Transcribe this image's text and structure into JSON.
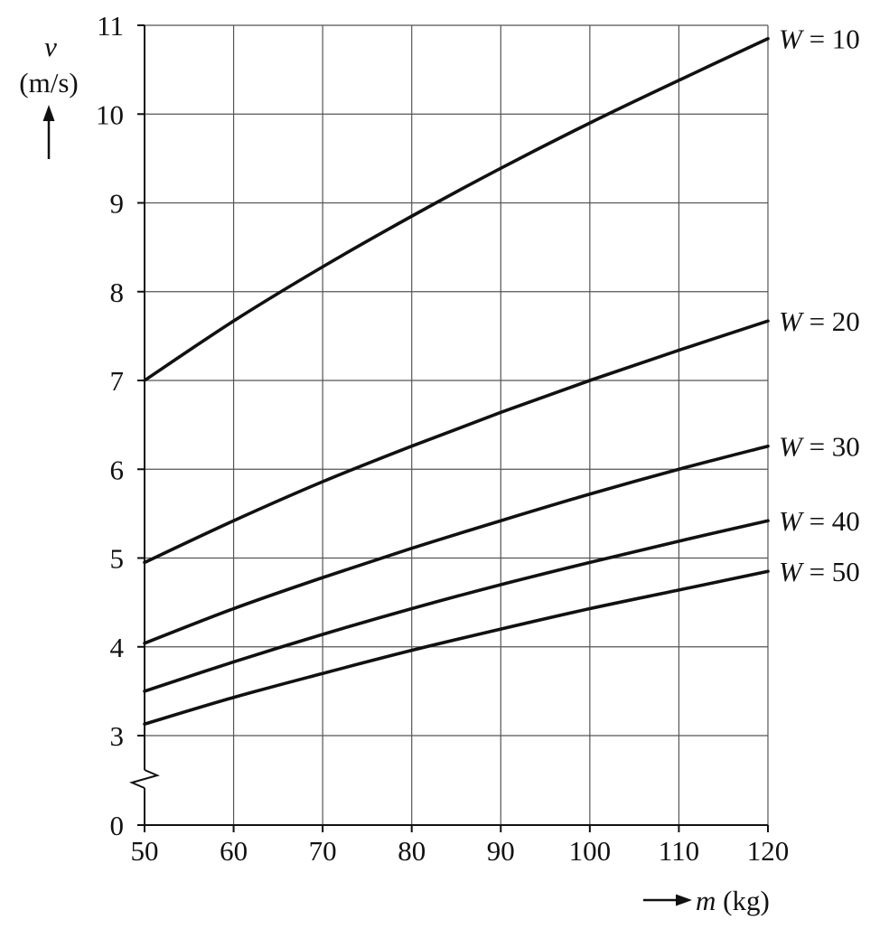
{
  "chart_data": {
    "type": "line",
    "title": "",
    "xlabel": {
      "symbol": "m",
      "unit": "(kg)"
    },
    "ylabel": {
      "symbol": "v",
      "unit": "(m/s)"
    },
    "xlim": [
      50,
      120
    ],
    "ylim": [
      0,
      11
    ],
    "y_axis_break": true,
    "y_break_between": [
      0,
      3
    ],
    "grid": true,
    "x_ticks": [
      "50",
      "60",
      "70",
      "80",
      "90",
      "100",
      "110",
      "120"
    ],
    "y_ticks": [
      "0",
      "3",
      "4",
      "5",
      "6",
      "7",
      "8",
      "9",
      "10",
      "11"
    ],
    "x": [
      50,
      60,
      70,
      80,
      90,
      100,
      110,
      120
    ],
    "series": [
      {
        "name": "W = 10",
        "label_var": "W",
        "label_rest": " = 10",
        "values": [
          7.0,
          7.67,
          8.28,
          8.85,
          9.39,
          9.9,
          10.38,
          10.85
        ]
      },
      {
        "name": "W = 20",
        "label_var": "W",
        "label_rest": " = 20",
        "values": [
          4.95,
          5.42,
          5.86,
          6.26,
          6.64,
          7.0,
          7.34,
          7.67
        ]
      },
      {
        "name": "W = 30",
        "label_var": "W",
        "label_rest": " = 30",
        "values": [
          4.04,
          4.43,
          4.78,
          5.11,
          5.42,
          5.72,
          6.0,
          6.26
        ]
      },
      {
        "name": "W = 40",
        "label_var": "W",
        "label_rest": " = 40",
        "values": [
          3.5,
          3.83,
          4.14,
          4.43,
          4.7,
          4.95,
          5.19,
          5.42
        ]
      },
      {
        "name": "W = 50",
        "label_var": "W",
        "label_rest": " = 50",
        "values": [
          3.13,
          3.43,
          3.7,
          3.96,
          4.2,
          4.43,
          4.64,
          4.85
        ]
      }
    ],
    "line_color": "#111111",
    "grid_color": "#555555"
  }
}
